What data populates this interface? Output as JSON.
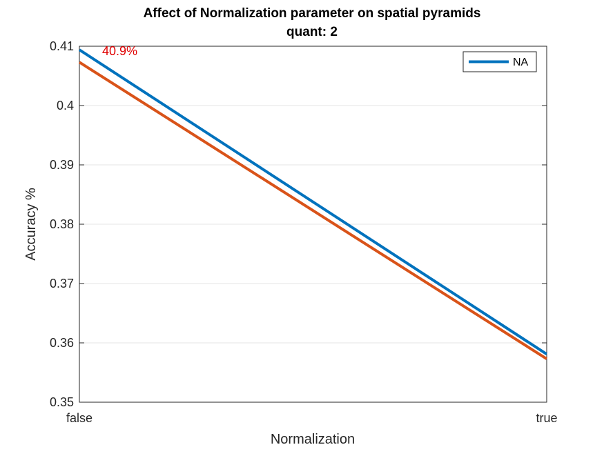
{
  "chart_data": {
    "type": "line",
    "title": "Affect of Normalization parameter on spatial pyramids",
    "subtitle": "quant: 2",
    "xlabel": "Normalization",
    "ylabel": "Accuracy %",
    "categories": [
      "false",
      "true"
    ],
    "ylim": [
      0.35,
      0.41
    ],
    "yticks": [
      0.35,
      0.36,
      0.37,
      0.38,
      0.39,
      0.4,
      0.41
    ],
    "ytick_labels": [
      "0.35",
      "0.36",
      "0.37",
      "0.38",
      "0.39",
      "0.4",
      "0.41"
    ],
    "grid": "horizontal",
    "legend_position": "top-right",
    "series": [
      {
        "name": "NA",
        "values": [
          0.4094,
          0.3581
        ],
        "color": "#0072BD",
        "in_legend": true
      },
      {
        "values": [
          0.4073,
          0.3573
        ],
        "color": "#D95319",
        "in_legend": false
      }
    ],
    "annotations": [
      {
        "text": "40.9%",
        "x": "false",
        "y": 0.4094,
        "color": "#E00000"
      }
    ]
  }
}
